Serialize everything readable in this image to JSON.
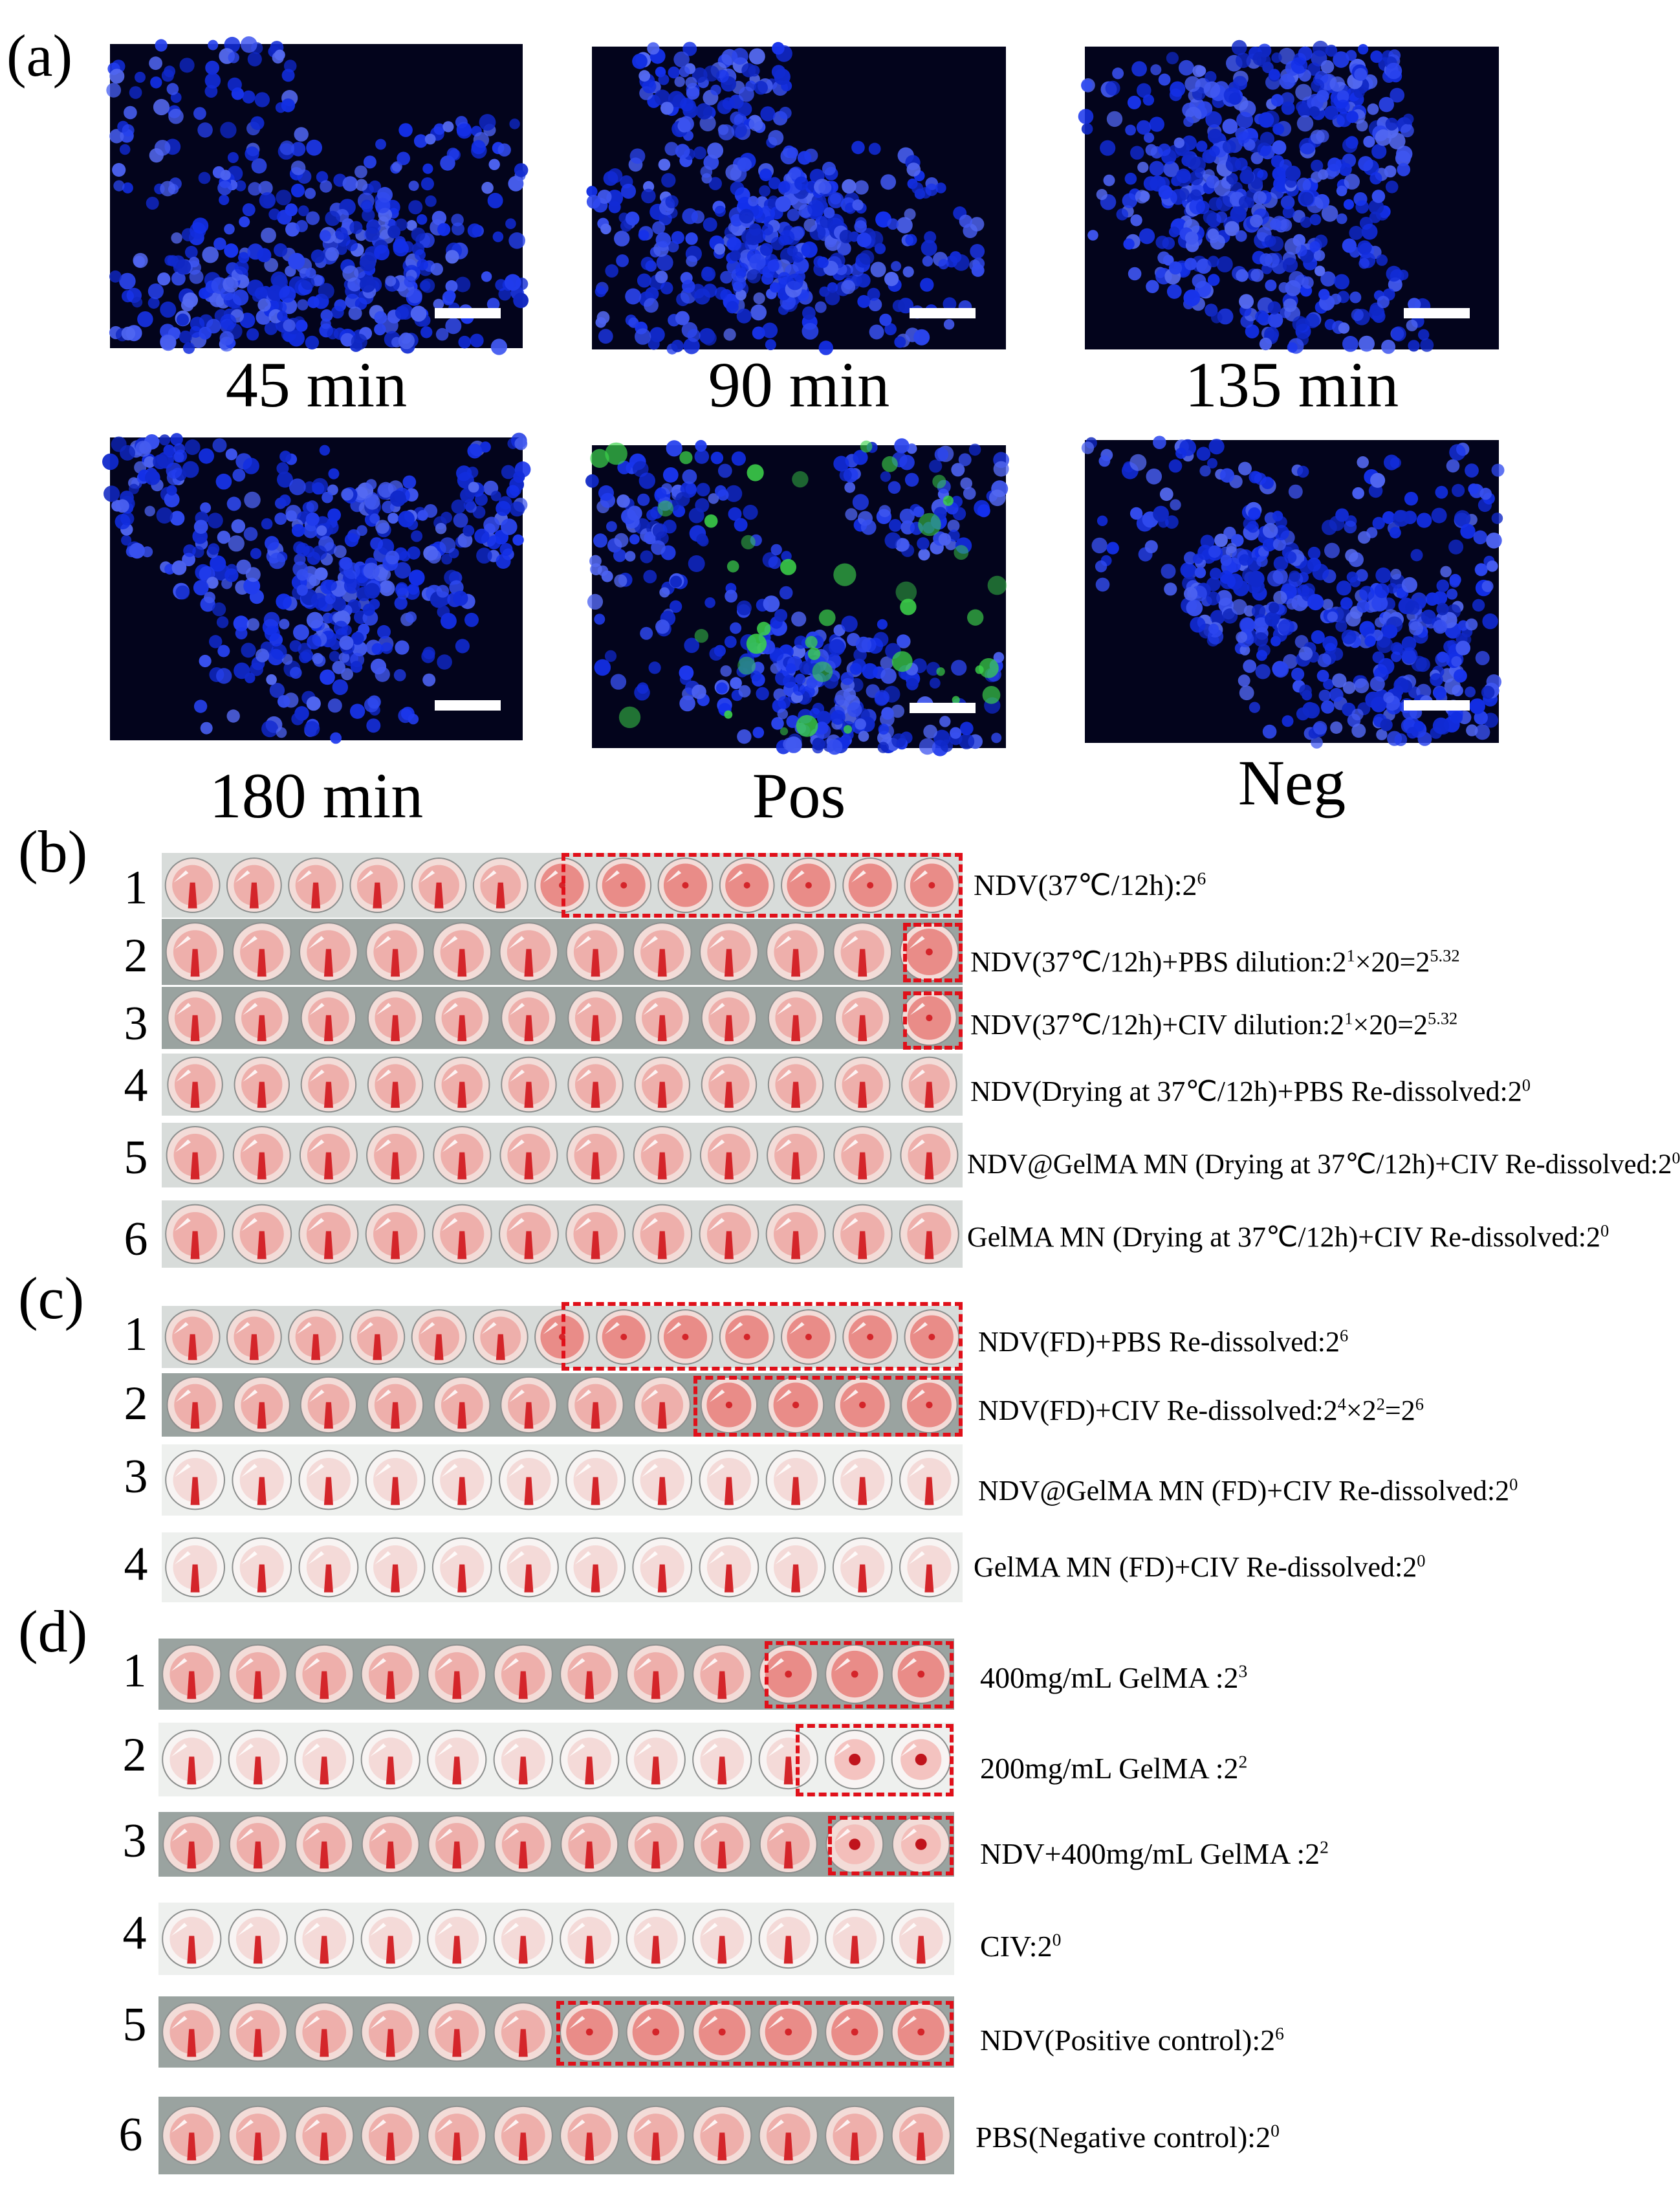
{
  "panel_a": {
    "letter": "(a)",
    "images": [
      {
        "caption": "45 min",
        "kind": "nuclei"
      },
      {
        "caption": "90 min",
        "kind": "nuclei"
      },
      {
        "caption": "135 min",
        "kind": "nuclei"
      },
      {
        "caption": "180 min",
        "kind": "nuclei"
      },
      {
        "caption": "Pos",
        "kind": "nuclei-green"
      },
      {
        "caption": "Neg",
        "kind": "nuclei"
      }
    ]
  },
  "panel_b": {
    "letter": "(b)",
    "rows": [
      {
        "num": "1",
        "text": "NDV(37℃/12h):2",
        "sup": "6",
        "tail": "",
        "tailsup": ""
      },
      {
        "num": "2",
        "text": "NDV(37℃/12h)+PBS dilution:2",
        "sup": "1",
        "tail": "×20=2",
        "tailsup": "5.32"
      },
      {
        "num": "3",
        "text": "NDV(37℃/12h)+CIV dilution:2",
        "sup": "1",
        "tail": "×20=2",
        "tailsup": "5.32"
      },
      {
        "num": "4",
        "text": "NDV(Drying at 37℃/12h)+PBS Re-dissolved:2",
        "sup": "0",
        "tail": "",
        "tailsup": ""
      },
      {
        "num": "5",
        "text": "NDV@GelMA MN (Drying at 37℃/12h)+CIV Re-dissolved:2",
        "sup": "0",
        "tail": "",
        "tailsup": ""
      },
      {
        "num": "6",
        "text": "GelMA MN (Drying at 37℃/12h)+CIV Re-dissolved:2",
        "sup": "0",
        "tail": "",
        "tailsup": ""
      }
    ]
  },
  "panel_c": {
    "letter": "(c)",
    "rows": [
      {
        "num": "1",
        "text": "NDV(FD)+PBS Re-dissolved:2",
        "sup": "6",
        "tail": "",
        "tailsup": ""
      },
      {
        "num": "2",
        "text": "NDV(FD)+CIV Re-dissolved:2",
        "sup": "4",
        "tail": "×2",
        "tailsup": "2",
        "tail2": "=2",
        "tail2sup": "6"
      },
      {
        "num": "3",
        "text": "NDV@GelMA MN (FD)+CIV Re-dissolved:2",
        "sup": "0",
        "tail": "",
        "tailsup": ""
      },
      {
        "num": "4",
        "text": "GelMA MN (FD)+CIV Re-dissolved:2",
        "sup": "0",
        "tail": "",
        "tailsup": ""
      }
    ]
  },
  "panel_d": {
    "letter": "(d)",
    "rows": [
      {
        "num": "1",
        "text": "400mg/mL GelMA :2",
        "sup": "3",
        "tail": "",
        "tailsup": ""
      },
      {
        "num": "2",
        "text": "200mg/mL GelMA :2",
        "sup": "2",
        "tail": "",
        "tailsup": ""
      },
      {
        "num": "3",
        "text": "NDV+400mg/mL GelMA :2",
        "sup": "2",
        "tail": "",
        "tailsup": ""
      },
      {
        "num": "4",
        "text": "CIV:2",
        "sup": "0",
        "tail": "",
        "tailsup": ""
      },
      {
        "num": "5",
        "text": "NDV(Positive control):2",
        "sup": "6",
        "tail": "",
        "tailsup": ""
      },
      {
        "num": "6",
        "text": "PBS(Negative control):2",
        "sup": "0",
        "tail": "",
        "tailsup": ""
      }
    ]
  },
  "colors": {
    "nucleus": "#1f2fe6",
    "background": "#03041c",
    "green": "#3cd24a",
    "dashed_box": "#e0101a",
    "blood": "#d4252a"
  }
}
